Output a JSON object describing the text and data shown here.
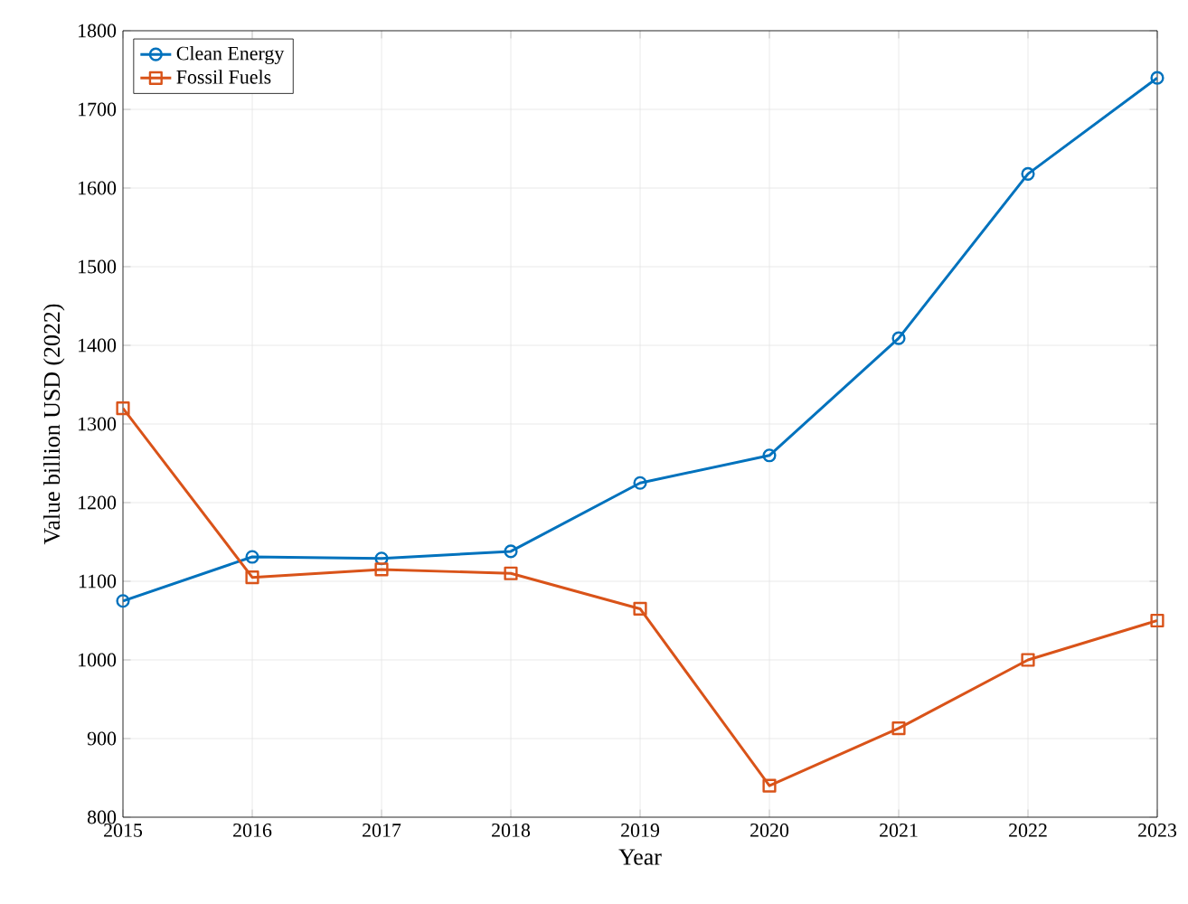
{
  "chart_data": {
    "type": "line",
    "xlabel": "Year",
    "ylabel": "Value billion USD (2022)",
    "x": [
      2015,
      2016,
      2017,
      2018,
      2019,
      2020,
      2021,
      2022,
      2023
    ],
    "series": [
      {
        "name": "Clean Energy",
        "color": "#0072bd",
        "marker": "circle",
        "values": [
          1075,
          1131,
          1129,
          1138,
          1225,
          1260,
          1409,
          1618,
          1740
        ]
      },
      {
        "name": "Fossil Fuels",
        "color": "#d95319",
        "marker": "square",
        "values": [
          1320,
          1105,
          1115,
          1110,
          1065,
          840,
          913,
          1000,
          1050
        ]
      }
    ],
    "xlim": [
      2015,
      2023
    ],
    "xticks": [
      2015,
      2016,
      2017,
      2018,
      2019,
      2020,
      2021,
      2022,
      2023
    ],
    "ylim": [
      800,
      1800
    ],
    "yticks": [
      800,
      900,
      1000,
      1100,
      1200,
      1300,
      1400,
      1500,
      1600,
      1700,
      1800
    ],
    "grid": true,
    "legend": "top left",
    "line_style": "solid"
  }
}
